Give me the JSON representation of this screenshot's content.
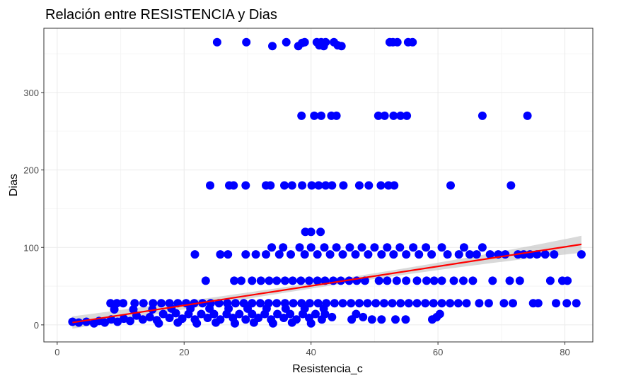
{
  "chart_data": {
    "type": "scatter",
    "title": "Relación entre RESISTENCIA y Dias",
    "xlabel": "Resistencia_c",
    "ylabel": "Dias",
    "xlim": [
      -2.1,
      84.4
    ],
    "ylim": [
      -22,
      383
    ],
    "x_ticks": [
      0,
      20,
      40,
      60,
      80
    ],
    "y_ticks": [
      0,
      100,
      200,
      300
    ],
    "x_tick_labels": [
      "0",
      "20",
      "40",
      "60",
      "80"
    ],
    "y_tick_labels": [
      "0",
      "100",
      "200",
      "300"
    ],
    "grid": true,
    "legend": "none",
    "colors": {
      "points": "#0000ff",
      "smooth_line": "#ff0000",
      "confidence_band": "#bfbfbf",
      "panel_border": "#333333",
      "grid_major": "#ebebeb",
      "grid_minor": "#f5f5f5"
    },
    "points": [
      [
        25.2,
        365
      ],
      [
        29.8,
        365
      ],
      [
        33.9,
        360
      ],
      [
        36.1,
        365
      ],
      [
        38.0,
        360
      ],
      [
        38.6,
        364
      ],
      [
        39.0,
        365
      ],
      [
        40.9,
        365
      ],
      [
        41.3,
        361
      ],
      [
        41.6,
        365
      ],
      [
        42.0,
        360
      ],
      [
        42.3,
        365
      ],
      [
        43.6,
        365
      ],
      [
        44.2,
        361
      ],
      [
        44.8,
        360
      ],
      [
        52.4,
        365
      ],
      [
        52.9,
        365
      ],
      [
        53.6,
        365
      ],
      [
        55.3,
        365
      ],
      [
        56.0,
        365
      ],
      [
        38.5,
        270
      ],
      [
        40.5,
        270
      ],
      [
        41.6,
        270
      ],
      [
        43.2,
        270
      ],
      [
        44.0,
        270
      ],
      [
        50.6,
        270
      ],
      [
        51.6,
        270
      ],
      [
        53.0,
        270
      ],
      [
        54.1,
        270
      ],
      [
        55.1,
        270
      ],
      [
        67.0,
        270
      ],
      [
        74.1,
        270
      ],
      [
        24.1,
        180
      ],
      [
        27.1,
        180
      ],
      [
        27.8,
        180
      ],
      [
        29.7,
        180
      ],
      [
        32.9,
        180
      ],
      [
        33.6,
        180
      ],
      [
        35.8,
        180
      ],
      [
        37.0,
        180
      ],
      [
        38.6,
        180
      ],
      [
        40.1,
        180
      ],
      [
        41.2,
        180
      ],
      [
        42.3,
        180
      ],
      [
        43.3,
        180
      ],
      [
        45.1,
        180
      ],
      [
        47.6,
        180
      ],
      [
        49.1,
        180
      ],
      [
        51.0,
        180
      ],
      [
        52.2,
        180
      ],
      [
        53.1,
        180
      ],
      [
        62.0,
        180
      ],
      [
        71.5,
        180
      ],
      [
        39.1,
        120
      ],
      [
        40.0,
        120
      ],
      [
        41.5,
        120
      ],
      [
        21.7,
        91
      ],
      [
        25.7,
        91
      ],
      [
        26.9,
        91
      ],
      [
        29.7,
        91
      ],
      [
        31.3,
        91
      ],
      [
        32.9,
        91
      ],
      [
        33.8,
        100
      ],
      [
        35.0,
        91
      ],
      [
        35.6,
        100
      ],
      [
        36.8,
        91
      ],
      [
        38.2,
        100
      ],
      [
        39.0,
        91
      ],
      [
        40.0,
        100
      ],
      [
        41.0,
        91
      ],
      [
        42.1,
        100
      ],
      [
        43.0,
        91
      ],
      [
        44.0,
        100
      ],
      [
        45.0,
        91
      ],
      [
        46.1,
        100
      ],
      [
        47.0,
        91
      ],
      [
        48.0,
        100
      ],
      [
        49.0,
        91
      ],
      [
        50.0,
        100
      ],
      [
        51.1,
        91
      ],
      [
        52.0,
        100
      ],
      [
        53.0,
        91
      ],
      [
        54.0,
        100
      ],
      [
        55.0,
        91
      ],
      [
        56.1,
        100
      ],
      [
        57.0,
        91
      ],
      [
        58.1,
        100
      ],
      [
        59.0,
        91
      ],
      [
        60.6,
        100
      ],
      [
        61.5,
        91
      ],
      [
        63.3,
        91
      ],
      [
        64.1,
        100
      ],
      [
        65.0,
        91
      ],
      [
        66.1,
        91
      ],
      [
        67.0,
        100
      ],
      [
        68.2,
        91
      ],
      [
        69.5,
        91
      ],
      [
        70.6,
        91
      ],
      [
        72.6,
        91
      ],
      [
        73.5,
        91
      ],
      [
        74.5,
        91
      ],
      [
        75.6,
        91
      ],
      [
        76.9,
        91
      ],
      [
        78.3,
        91
      ],
      [
        82.6,
        91
      ],
      [
        23.4,
        57
      ],
      [
        27.9,
        57
      ],
      [
        29.0,
        57
      ],
      [
        30.7,
        57
      ],
      [
        32.1,
        57
      ],
      [
        33.4,
        57
      ],
      [
        34.6,
        57
      ],
      [
        35.9,
        57
      ],
      [
        37.1,
        57
      ],
      [
        38.4,
        57
      ],
      [
        39.7,
        57
      ],
      [
        41.0,
        57
      ],
      [
        42.2,
        57
      ],
      [
        43.5,
        57
      ],
      [
        44.7,
        57
      ],
      [
        46.0,
        57
      ],
      [
        47.2,
        57
      ],
      [
        48.5,
        57
      ],
      [
        50.7,
        57
      ],
      [
        52.0,
        57
      ],
      [
        53.5,
        57
      ],
      [
        55.0,
        57
      ],
      [
        56.7,
        57
      ],
      [
        58.2,
        57
      ],
      [
        59.4,
        57
      ],
      [
        60.6,
        57
      ],
      [
        62.5,
        57
      ],
      [
        64.0,
        57
      ],
      [
        65.5,
        57
      ],
      [
        68.6,
        57
      ],
      [
        71.3,
        57
      ],
      [
        72.9,
        57
      ],
      [
        77.7,
        57
      ],
      [
        79.6,
        57
      ],
      [
        80.4,
        57
      ],
      [
        8.4,
        28
      ],
      [
        9.4,
        28
      ],
      [
        10.4,
        28
      ],
      [
        12.2,
        28
      ],
      [
        13.6,
        28
      ],
      [
        15.1,
        28
      ],
      [
        16.4,
        28
      ],
      [
        17.7,
        28
      ],
      [
        19.0,
        28
      ],
      [
        20.3,
        28
      ],
      [
        21.6,
        28
      ],
      [
        22.9,
        28
      ],
      [
        24.2,
        28
      ],
      [
        25.5,
        28
      ],
      [
        26.8,
        28
      ],
      [
        28.1,
        28
      ],
      [
        29.4,
        28
      ],
      [
        30.7,
        28
      ],
      [
        32.0,
        28
      ],
      [
        33.3,
        28
      ],
      [
        34.6,
        28
      ],
      [
        35.9,
        28
      ],
      [
        37.2,
        28
      ],
      [
        38.5,
        28
      ],
      [
        39.8,
        28
      ],
      [
        41.1,
        28
      ],
      [
        42.4,
        28
      ],
      [
        43.7,
        28
      ],
      [
        45.0,
        28
      ],
      [
        46.3,
        28
      ],
      [
        47.6,
        28
      ],
      [
        48.9,
        28
      ],
      [
        50.2,
        28
      ],
      [
        51.5,
        28
      ],
      [
        52.8,
        28
      ],
      [
        54.1,
        28
      ],
      [
        55.4,
        28
      ],
      [
        56.7,
        28
      ],
      [
        58.0,
        28
      ],
      [
        59.3,
        28
      ],
      [
        60.6,
        28
      ],
      [
        61.9,
        28
      ],
      [
        63.2,
        28
      ],
      [
        64.5,
        28
      ],
      [
        66.5,
        28
      ],
      [
        68.0,
        28
      ],
      [
        70.4,
        28
      ],
      [
        71.8,
        28
      ],
      [
        75.0,
        28
      ],
      [
        75.8,
        28
      ],
      [
        78.6,
        28
      ],
      [
        80.3,
        28
      ],
      [
        81.8,
        28
      ],
      [
        2.4,
        4
      ],
      [
        3.4,
        3
      ],
      [
        4.6,
        4
      ],
      [
        5.8,
        2
      ],
      [
        6.6,
        5
      ],
      [
        7.5,
        3
      ],
      [
        8.5,
        7
      ],
      [
        9.5,
        4
      ],
      [
        10.5,
        8
      ],
      [
        11.5,
        5
      ],
      [
        12.5,
        12
      ],
      [
        13.5,
        7
      ],
      [
        14.6,
        10
      ],
      [
        15.7,
        6
      ],
      [
        16.7,
        14
      ],
      [
        17.7,
        9
      ],
      [
        18.7,
        15
      ],
      [
        19.7,
        8
      ],
      [
        20.7,
        14
      ],
      [
        21.7,
        7
      ],
      [
        22.7,
        14
      ],
      [
        23.7,
        9
      ],
      [
        24.7,
        14
      ],
      [
        25.7,
        7
      ],
      [
        26.7,
        14
      ],
      [
        27.7,
        9
      ],
      [
        28.7,
        14
      ],
      [
        29.7,
        7
      ],
      [
        30.7,
        14
      ],
      [
        31.7,
        9
      ],
      [
        32.7,
        14
      ],
      [
        33.7,
        7
      ],
      [
        34.7,
        14
      ],
      [
        35.7,
        9
      ],
      [
        36.7,
        14
      ],
      [
        37.7,
        7
      ],
      [
        38.7,
        14
      ],
      [
        39.7,
        9
      ],
      [
        40.7,
        14
      ],
      [
        41.7,
        7
      ],
      [
        42.2,
        14
      ],
      [
        43.3,
        10
      ],
      [
        47.1,
        14
      ],
      [
        46.4,
        7
      ],
      [
        48.2,
        10
      ],
      [
        49.6,
        7
      ],
      [
        51.1,
        7
      ],
      [
        53.3,
        7
      ],
      [
        54.9,
        7
      ],
      [
        59.1,
        7
      ],
      [
        59.8,
        10
      ],
      [
        60.3,
        14
      ],
      [
        9.0,
        20
      ],
      [
        12.0,
        20
      ],
      [
        15.0,
        20
      ],
      [
        18.0,
        21
      ],
      [
        21.0,
        21
      ],
      [
        24.0,
        21
      ],
      [
        27.0,
        21
      ],
      [
        30.0,
        21
      ],
      [
        33.0,
        21
      ],
      [
        36.0,
        21
      ],
      [
        39.0,
        21
      ],
      [
        42.0,
        21
      ],
      [
        16.0,
        2
      ],
      [
        19.0,
        3
      ],
      [
        22.0,
        2
      ],
      [
        25.0,
        3
      ],
      [
        28.0,
        2
      ],
      [
        31.0,
        3
      ],
      [
        34.0,
        2
      ],
      [
        37.0,
        3
      ],
      [
        40.0,
        2
      ]
    ],
    "smooth": {
      "x_start": 2.4,
      "x_end": 82.6,
      "y_start": 3,
      "y_end": 104,
      "se_start": 8,
      "se_end": 11,
      "se_mid": 3.5
    }
  }
}
